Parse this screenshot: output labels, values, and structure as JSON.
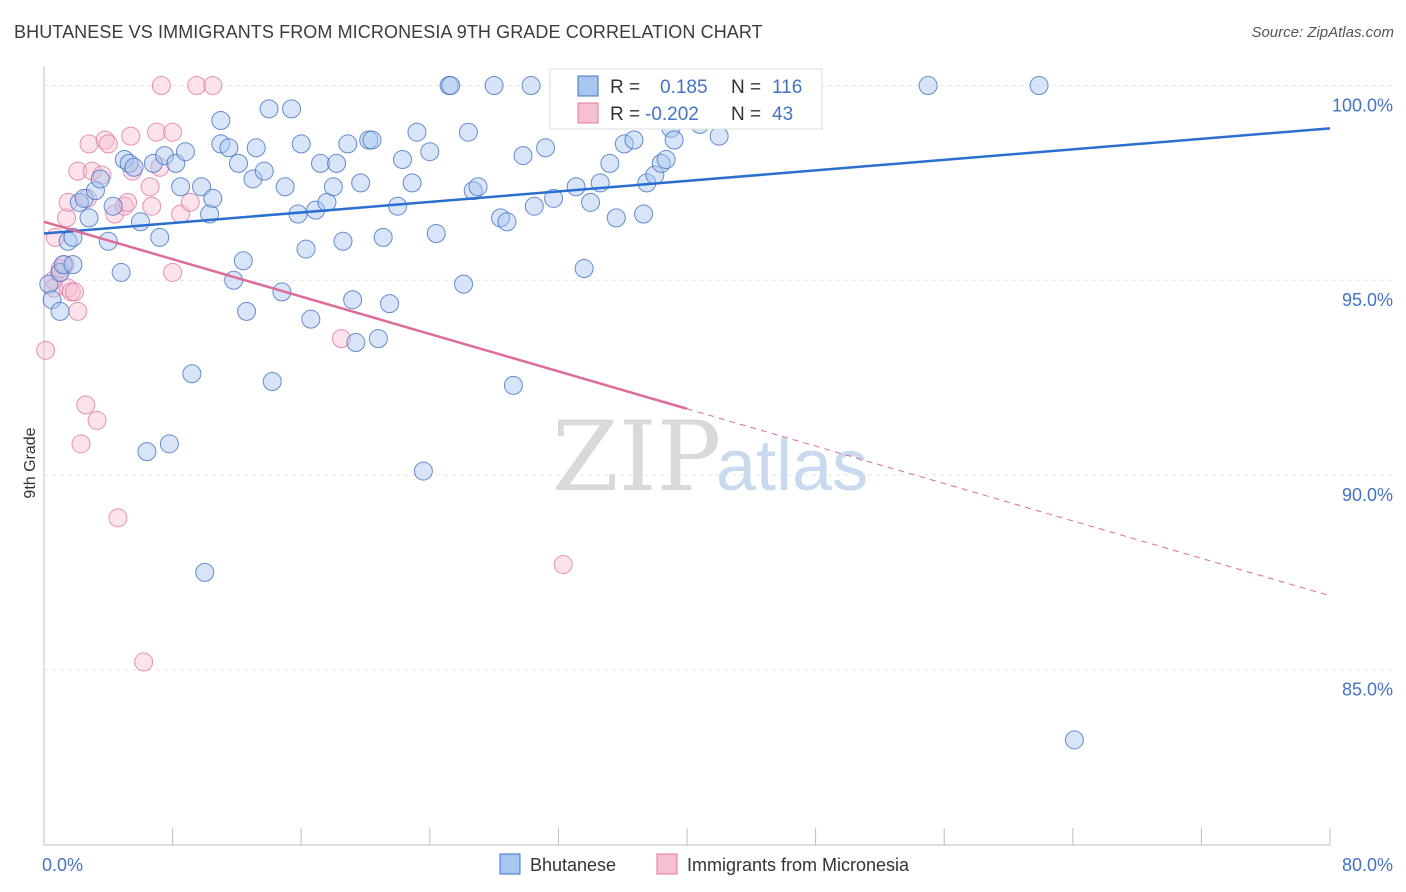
{
  "title": "BHUTANESE VS IMMIGRANTS FROM MICRONESIA 9TH GRADE CORRELATION CHART",
  "source": "Source: ZipAtlas.com",
  "watermark": {
    "zip": "ZIP",
    "atlas": "atlas"
  },
  "colors": {
    "blue": "#4472c4",
    "blue_fill": "#a8c6f0",
    "blue_line": "#2a6fcf",
    "pink": "#e07aa0",
    "pink_fill": "#f7bfd2",
    "pink_line": "#de6c98",
    "grid": "#e6e6e6"
  },
  "stats": {
    "r_label": "R =",
    "n_label": "N =",
    "rows": [
      {
        "r": "0.185",
        "n": "116",
        "series": "Bhutanese"
      },
      {
        "r": "-0.202",
        "n": "43",
        "series": "Immigrants from Micronesia"
      }
    ]
  },
  "chart_data": {
    "type": "scatter",
    "title": "BHUTANESE VS IMMIGRANTS FROM MICRONESIA 9TH GRADE CORRELATION CHART",
    "xlabel": "",
    "ylabel": "9th Grade",
    "xlim": [
      0,
      80
    ],
    "ylim": [
      80.5,
      100.5
    ],
    "x_tick_labels": [
      {
        "v": 0,
        "label": "0.0%"
      },
      {
        "v": 80,
        "label": "80.0%"
      }
    ],
    "x_minor_ticks": [
      0,
      8,
      16,
      24,
      32,
      40,
      48,
      56,
      64,
      72,
      80
    ],
    "y_ticks": [
      {
        "v": 100,
        "label": "100.0%"
      },
      {
        "v": 95,
        "label": "95.0%"
      },
      {
        "v": 90,
        "label": "90.0%"
      },
      {
        "v": 85,
        "label": "85.0%"
      }
    ],
    "grid": true,
    "legend_position": "bottom",
    "series": [
      {
        "name": "Bhutanese",
        "color": "#4472c4",
        "trend": {
          "x0": 0,
          "y0": 96.2,
          "x1": 80,
          "y1": 98.9
        },
        "points": [
          [
            0.3,
            94.9
          ],
          [
            0.5,
            94.5
          ],
          [
            1.0,
            95.2
          ],
          [
            1.0,
            94.2
          ],
          [
            1.2,
            95.4
          ],
          [
            1.5,
            96.0
          ],
          [
            1.8,
            96.1
          ],
          [
            1.8,
            95.4
          ],
          [
            2.2,
            97.0
          ],
          [
            2.5,
            97.1
          ],
          [
            2.8,
            96.6
          ],
          [
            3.2,
            97.3
          ],
          [
            3.5,
            97.6
          ],
          [
            4.0,
            96.0
          ],
          [
            4.3,
            96.9
          ],
          [
            4.8,
            95.2
          ],
          [
            5.0,
            98.1
          ],
          [
            5.3,
            98.0
          ],
          [
            5.6,
            97.9
          ],
          [
            6.0,
            96.5
          ],
          [
            6.4,
            90.6
          ],
          [
            6.8,
            98.0
          ],
          [
            7.2,
            96.1
          ],
          [
            7.5,
            98.2
          ],
          [
            7.8,
            90.8
          ],
          [
            8.2,
            98.0
          ],
          [
            8.5,
            97.4
          ],
          [
            8.8,
            98.3
          ],
          [
            9.2,
            92.6
          ],
          [
            9.8,
            97.4
          ],
          [
            10.0,
            87.5
          ],
          [
            10.3,
            96.7
          ],
          [
            10.5,
            97.1
          ],
          [
            11.0,
            99.1
          ],
          [
            11.0,
            98.5
          ],
          [
            11.5,
            98.4
          ],
          [
            11.8,
            95.0
          ],
          [
            12.1,
            98.0
          ],
          [
            12.4,
            95.5
          ],
          [
            12.6,
            94.2
          ],
          [
            13.0,
            97.6
          ],
          [
            13.2,
            98.4
          ],
          [
            13.7,
            97.8
          ],
          [
            14.0,
            99.4
          ],
          [
            14.2,
            92.4
          ],
          [
            14.8,
            94.7
          ],
          [
            15.0,
            97.4
          ],
          [
            15.4,
            99.4
          ],
          [
            15.8,
            96.7
          ],
          [
            16.0,
            98.5
          ],
          [
            16.3,
            95.8
          ],
          [
            16.6,
            94.0
          ],
          [
            16.9,
            96.8
          ],
          [
            17.2,
            98.0
          ],
          [
            17.6,
            97.0
          ],
          [
            18.0,
            97.4
          ],
          [
            18.2,
            98.0
          ],
          [
            18.6,
            96.0
          ],
          [
            18.9,
            98.5
          ],
          [
            19.2,
            94.5
          ],
          [
            19.4,
            93.4
          ],
          [
            19.7,
            97.5
          ],
          [
            20.2,
            98.6
          ],
          [
            20.4,
            98.6
          ],
          [
            20.8,
            93.5
          ],
          [
            21.1,
            96.1
          ],
          [
            21.5,
            94.4
          ],
          [
            22.0,
            96.9
          ],
          [
            22.3,
            98.1
          ],
          [
            22.9,
            97.5
          ],
          [
            23.2,
            98.8
          ],
          [
            23.6,
            90.1
          ],
          [
            24.0,
            98.3
          ],
          [
            24.4,
            96.2
          ],
          [
            25.2,
            100.0
          ],
          [
            25.3,
            100.0
          ],
          [
            26.1,
            94.9
          ],
          [
            26.4,
            98.8
          ],
          [
            26.7,
            97.3
          ],
          [
            27.0,
            97.4
          ],
          [
            28.0,
            100.0
          ],
          [
            28.4,
            96.6
          ],
          [
            28.8,
            96.5
          ],
          [
            29.2,
            92.3
          ],
          [
            29.8,
            98.2
          ],
          [
            30.3,
            100.0
          ],
          [
            30.5,
            96.9
          ],
          [
            31.2,
            98.4
          ],
          [
            31.7,
            97.1
          ],
          [
            32.2,
            99.3
          ],
          [
            33.1,
            97.4
          ],
          [
            33.6,
            95.3
          ],
          [
            34.0,
            97.0
          ],
          [
            34.6,
            97.5
          ],
          [
            35.2,
            98.0
          ],
          [
            35.6,
            96.6
          ],
          [
            36.1,
            98.5
          ],
          [
            36.7,
            98.6
          ],
          [
            37.3,
            96.7
          ],
          [
            37.5,
            97.5
          ],
          [
            38.0,
            97.7
          ],
          [
            38.4,
            98.0
          ],
          [
            38.7,
            98.1
          ],
          [
            39.0,
            98.9
          ],
          [
            39.2,
            98.6
          ],
          [
            40.0,
            99.2
          ],
          [
            40.8,
            99.0
          ],
          [
            42.0,
            98.7
          ],
          [
            43.0,
            99.7
          ],
          [
            43.8,
            100.0
          ],
          [
            44.2,
            100.0
          ],
          [
            44.8,
            99.8
          ],
          [
            45.0,
            99.4
          ],
          [
            55.0,
            100.0
          ],
          [
            61.9,
            100.0
          ],
          [
            64.1,
            83.2
          ]
        ]
      },
      {
        "name": "Immigrants from Micronesia",
        "color": "#e07aa0",
        "trend": {
          "x0": 0,
          "y0": 96.5,
          "x1": 40,
          "y1": 91.7,
          "x2": 80,
          "y2": 86.9
        },
        "points": [
          [
            0.1,
            93.2
          ],
          [
            0.6,
            95.0
          ],
          [
            0.6,
            94.8
          ],
          [
            0.7,
            96.1
          ],
          [
            1.0,
            95.2
          ],
          [
            1.0,
            95.3
          ],
          [
            1.3,
            95.4
          ],
          [
            1.4,
            96.6
          ],
          [
            1.5,
            97.0
          ],
          [
            1.5,
            94.8
          ],
          [
            1.7,
            94.7
          ],
          [
            1.9,
            94.7
          ],
          [
            2.1,
            94.2
          ],
          [
            2.1,
            97.8
          ],
          [
            2.3,
            90.8
          ],
          [
            2.6,
            91.8
          ],
          [
            2.7,
            97.1
          ],
          [
            2.8,
            98.5
          ],
          [
            3.0,
            97.8
          ],
          [
            3.3,
            91.4
          ],
          [
            3.6,
            97.7
          ],
          [
            3.8,
            98.6
          ],
          [
            4.0,
            98.5
          ],
          [
            4.4,
            96.7
          ],
          [
            4.6,
            88.9
          ],
          [
            5.0,
            96.9
          ],
          [
            5.2,
            97.0
          ],
          [
            5.4,
            98.7
          ],
          [
            5.5,
            97.8
          ],
          [
            6.2,
            85.2
          ],
          [
            6.6,
            97.4
          ],
          [
            6.7,
            96.9
          ],
          [
            7.0,
            98.8
          ],
          [
            7.2,
            97.9
          ],
          [
            7.3,
            100.0
          ],
          [
            8.0,
            98.8
          ],
          [
            8.0,
            95.2
          ],
          [
            8.5,
            96.7
          ],
          [
            9.1,
            97.0
          ],
          [
            9.5,
            100.0
          ],
          [
            10.5,
            100.0
          ],
          [
            18.5,
            93.5
          ],
          [
            32.3,
            87.7
          ]
        ]
      }
    ]
  }
}
